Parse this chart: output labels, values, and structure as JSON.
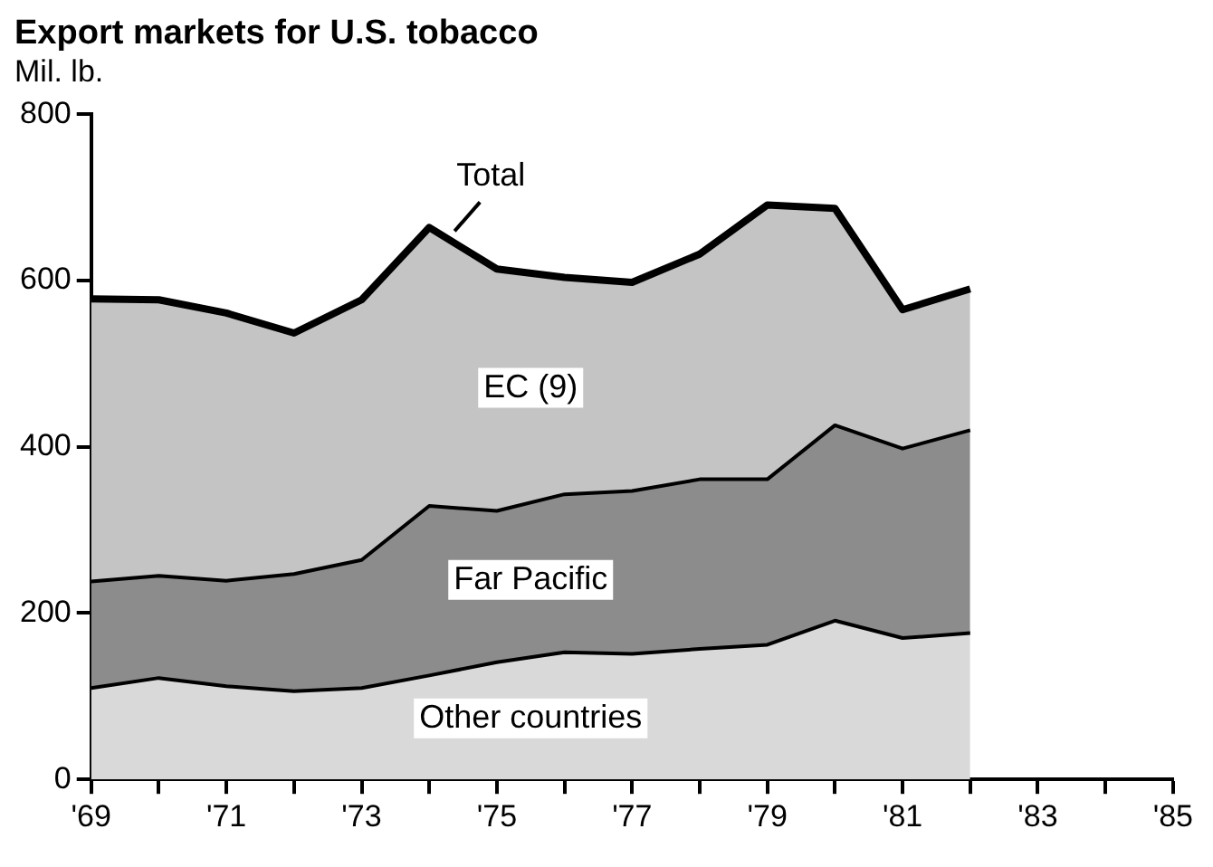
{
  "chart_data": {
    "type": "area",
    "title": "Export markets for U.S. tobacco",
    "ylabel": "Mil. lb.",
    "x": [
      1969,
      1970,
      1971,
      1972,
      1973,
      1974,
      1975,
      1976,
      1977,
      1978,
      1979,
      1980,
      1981,
      1982
    ],
    "stacked": true,
    "series": [
      {
        "name": "Other countries",
        "color": "#d9d9d9",
        "values": [
          110,
          122,
          112,
          106,
          110,
          125,
          141,
          153,
          151,
          157,
          162,
          191,
          170,
          176
        ]
      },
      {
        "name": "Far Pacific",
        "color": "#8c8c8c",
        "values": [
          128,
          123,
          127,
          141,
          154,
          204,
          182,
          190,
          196,
          204,
          199,
          235,
          228,
          244
        ]
      },
      {
        "name": "EC (9)",
        "color": "#c4c4c4",
        "values": [
          340,
          332,
          322,
          290,
          313,
          335,
          291,
          261,
          251,
          271,
          330,
          261,
          167,
          170
        ]
      }
    ],
    "annotations": [
      {
        "text": "Total",
        "x": 1974,
        "y": 664
      }
    ],
    "xlim": [
      1969,
      1985
    ],
    "xticks": [
      {
        "value": 1969,
        "label": "'69"
      },
      {
        "value": 1970,
        "label": null
      },
      {
        "value": 1971,
        "label": "'71"
      },
      {
        "value": 1972,
        "label": null
      },
      {
        "value": 1973,
        "label": "'73"
      },
      {
        "value": 1974,
        "label": null
      },
      {
        "value": 1975,
        "label": "'75"
      },
      {
        "value": 1976,
        "label": null
      },
      {
        "value": 1977,
        "label": "'77"
      },
      {
        "value": 1978,
        "label": null
      },
      {
        "value": 1979,
        "label": "'79"
      },
      {
        "value": 1980,
        "label": null
      },
      {
        "value": 1981,
        "label": "'81"
      },
      {
        "value": 1982,
        "label": null
      },
      {
        "value": 1983,
        "label": "'83"
      },
      {
        "value": 1984,
        "label": null
      },
      {
        "value": 1985,
        "label": "'85"
      }
    ],
    "ylim": [
      0,
      800
    ],
    "yticks": [
      0,
      200,
      400,
      600,
      800
    ],
    "legend": false,
    "grid": false,
    "marker": "none",
    "line_style": "solid"
  }
}
